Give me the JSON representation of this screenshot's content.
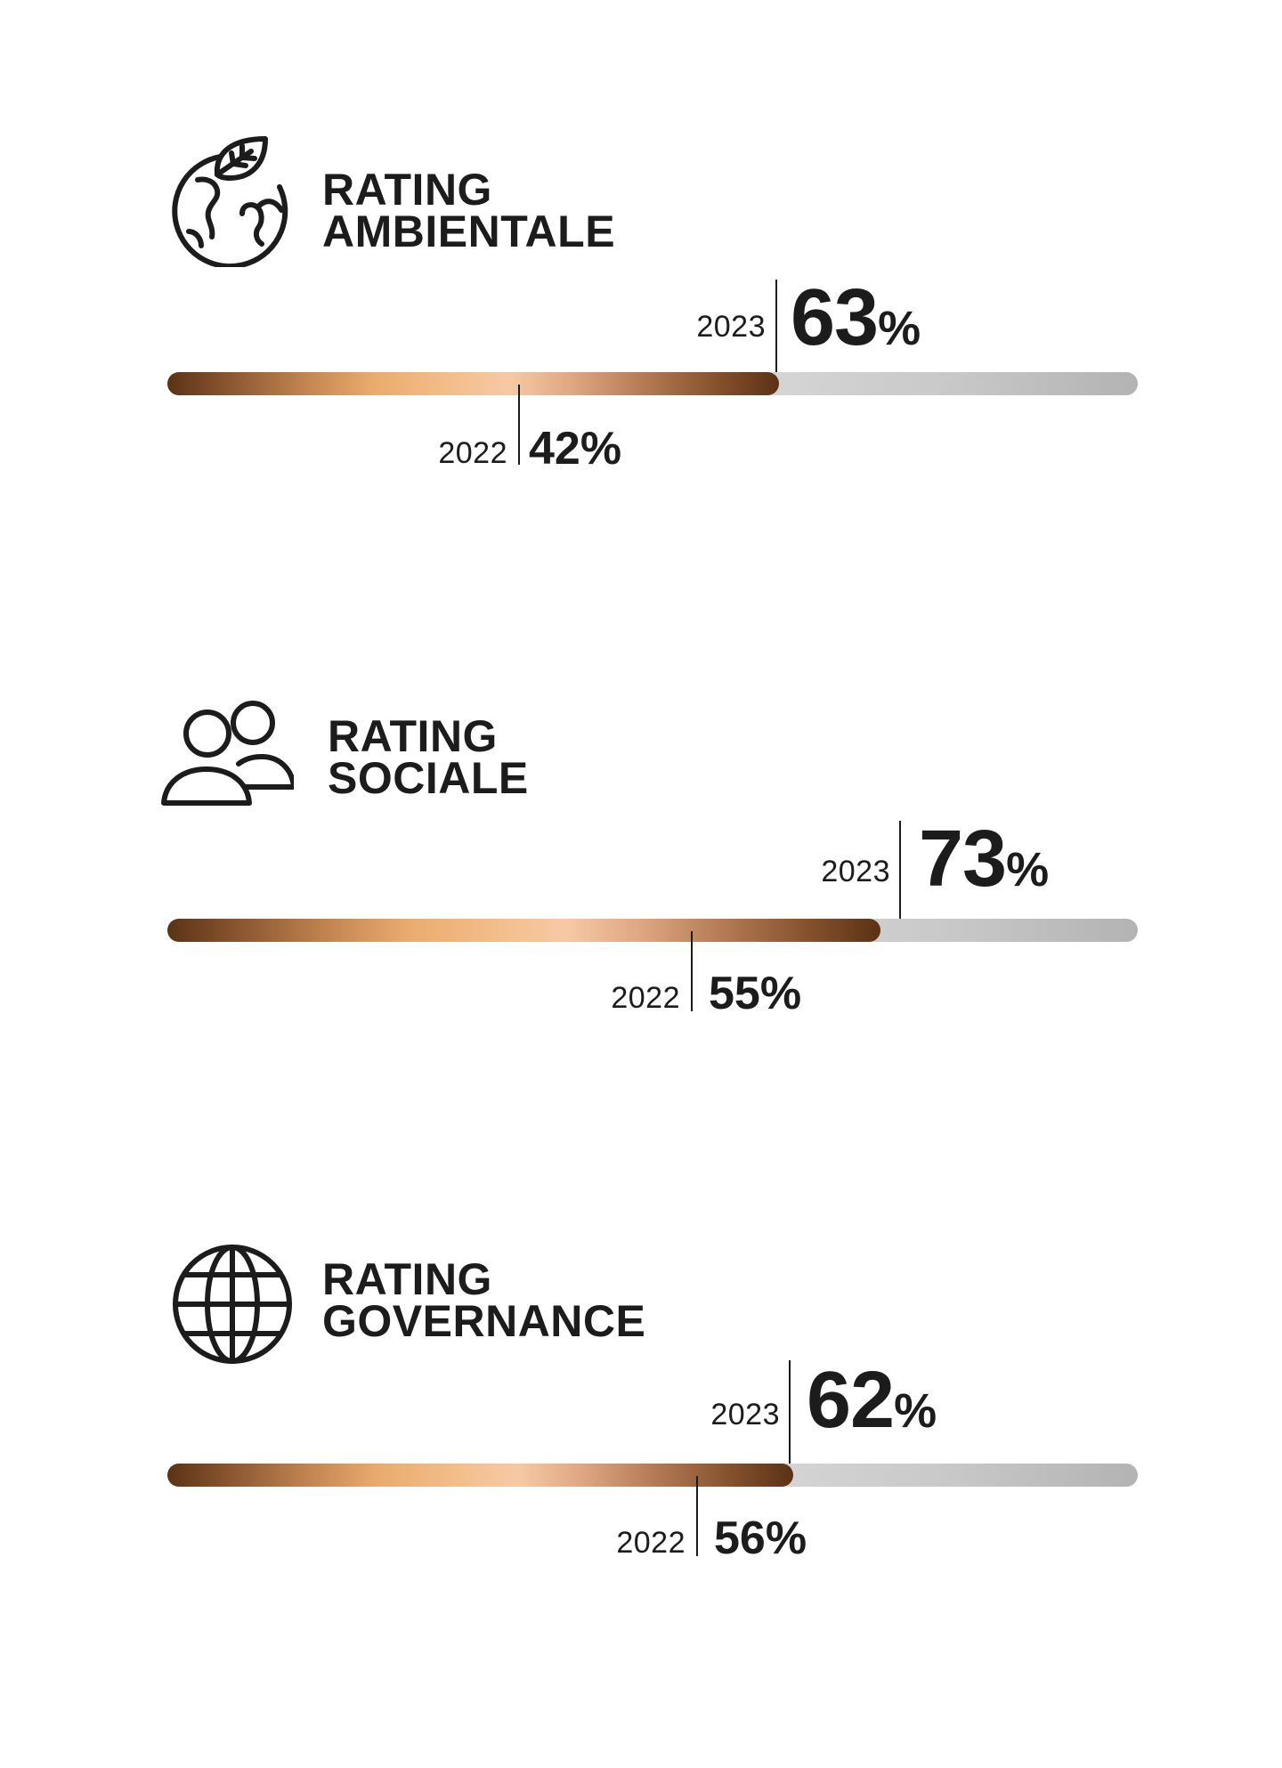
{
  "chart_data": [
    {
      "type": "bar",
      "title_line1": "RATING",
      "title_line2": "AMBIENTALE",
      "icon": "globe-leaf-icon",
      "current": {
        "year": "2023",
        "value": 63,
        "number_label": "63",
        "unit_label": "%"
      },
      "previous": {
        "year": "2022",
        "value": 42,
        "label": "42%"
      },
      "xlim": [
        0,
        100
      ]
    },
    {
      "type": "bar",
      "title_line1": "RATING",
      "title_line2": "SOCIALE",
      "icon": "people-icon",
      "current": {
        "year": "2023",
        "value": 73,
        "number_label": "73",
        "unit_label": "%"
      },
      "previous": {
        "year": "2022",
        "value": 55,
        "label": "55%"
      },
      "xlim": [
        0,
        100
      ]
    },
    {
      "type": "bar",
      "title_line1": "RATING",
      "title_line2": "GOVERNANCE",
      "icon": "globe-grid-icon",
      "current": {
        "year": "2023",
        "value": 62,
        "number_label": "62",
        "unit_label": "%"
      },
      "previous": {
        "year": "2022",
        "value": 56,
        "label": "56%"
      },
      "xlim": [
        0,
        100
      ]
    }
  ],
  "colors": {
    "text": "#1c1c1c",
    "fill_dark": "#5b3216",
    "fill_light": "#f6c9a5",
    "track": "#d9d9d9"
  }
}
